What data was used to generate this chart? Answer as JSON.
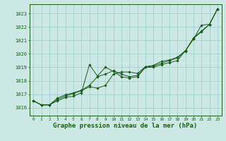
{
  "background_color": "#cce8e4",
  "grid_color": "#99cccc",
  "line_color": "#1a5c1a",
  "marker_color": "#1a5c1a",
  "xlabel": "Graphe pression niveau de la mer (hPa)",
  "xlabel_fontsize": 6.5,
  "ytick_labels": [
    "1016",
    "1017",
    "1018",
    "1019",
    "1020",
    "1021",
    "1022",
    "1023"
  ],
  "ylabel_ticks": [
    1016,
    1017,
    1018,
    1019,
    1020,
    1021,
    1022,
    1023
  ],
  "xlim": [
    -0.5,
    23.5
  ],
  "ylim": [
    1015.4,
    1023.7
  ],
  "xtick_labels": [
    "0",
    "1",
    "2",
    "3",
    "4",
    "5",
    "6",
    "7",
    "8",
    "9",
    "10",
    "11",
    "12",
    "13",
    "14",
    "15",
    "16",
    "17",
    "18",
    "19",
    "20",
    "21",
    "22",
    "23"
  ],
  "series": [
    [
      1016.5,
      1016.2,
      1016.2,
      1016.5,
      1016.75,
      1016.85,
      1017.1,
      1019.2,
      1018.35,
      1019.0,
      1018.7,
      1018.3,
      1018.2,
      1018.3,
      1019.0,
      1019.0,
      1019.2,
      1019.35,
      1019.5,
      1020.25,
      1021.1,
      1022.15,
      1022.2,
      1023.35
    ],
    [
      1016.5,
      1016.2,
      1016.2,
      1016.6,
      1016.85,
      1017.05,
      1017.25,
      1017.55,
      1017.45,
      1017.65,
      1018.5,
      1018.65,
      1018.65,
      1018.55,
      1019.05,
      1019.15,
      1019.45,
      1019.55,
      1019.75,
      1020.25,
      1021.15,
      1021.65,
      1022.2,
      1023.35
    ],
    [
      1016.5,
      1016.2,
      1016.2,
      1016.7,
      1016.95,
      1017.1,
      1017.3,
      1017.65,
      1018.3,
      1018.5,
      1018.75,
      1018.5,
      1018.3,
      1018.4,
      1019.0,
      1019.1,
      1019.3,
      1019.5,
      1019.7,
      1020.2,
      1021.2,
      1021.7,
      1022.2,
      1023.35
    ]
  ]
}
